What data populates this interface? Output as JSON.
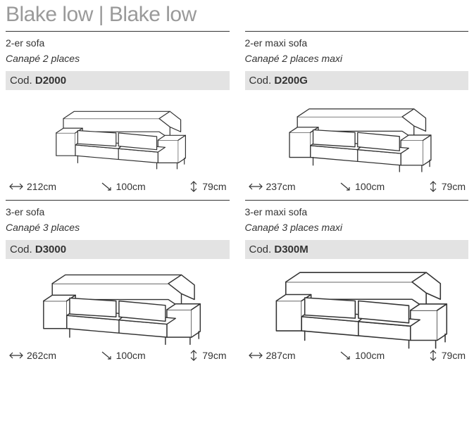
{
  "title": "Blake low | Blake low",
  "code_prefix": "Cod.",
  "colors": {
    "title": "#9a9a9a",
    "text": "#333333",
    "code_bg": "#e3e3e3",
    "rule": "#333333",
    "sofa_stroke": "#333333",
    "sofa_fill": "#ffffff"
  },
  "fonts": {
    "title_size": 30,
    "body_size": 14,
    "code_size": 15
  },
  "items": [
    {
      "name_en": "2-er sofa",
      "name_fr": "Canapé 2 places",
      "code": "D2000",
      "width": "212cm",
      "depth": "100cm",
      "height": "79cm",
      "sofa_scale": 0.85
    },
    {
      "name_en": "2-er maxi sofa",
      "name_fr": "Canapé 2 places maxi",
      "code": "D200G",
      "width": "237cm",
      "depth": "100cm",
      "height": "79cm",
      "sofa_scale": 0.93
    },
    {
      "name_en": "3-er sofa",
      "name_fr": "Canapé 3 places",
      "code": "D3000",
      "width": "262cm",
      "depth": "100cm",
      "height": "79cm",
      "sofa_scale": 1.03
    },
    {
      "name_en": "3-er maxi sofa",
      "name_fr": "Canapé 3 places maxi",
      "code": "D300M",
      "width": "287cm",
      "depth": "100cm",
      "height": "79cm",
      "sofa_scale": 1.12
    }
  ]
}
